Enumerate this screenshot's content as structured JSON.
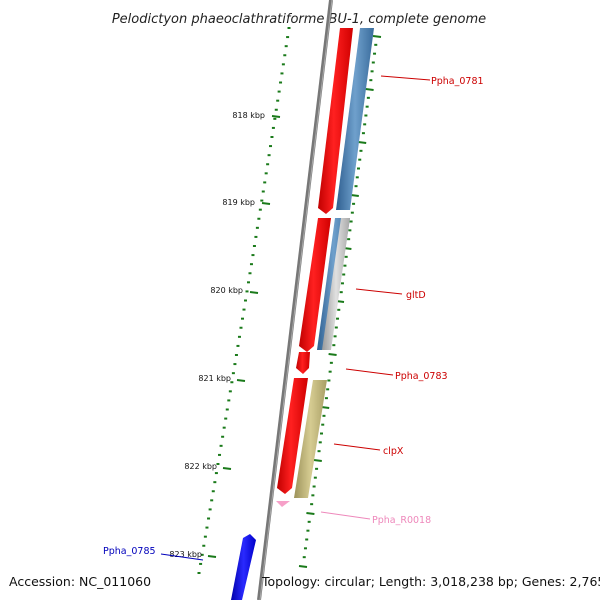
{
  "title": "Pelodictyon phaeoclathratiforme BU-1, complete genome",
  "footer": {
    "accession": "Accession: NC_011060",
    "topology": "Topology: circular; Length: 3,018,238 bp; Genes: 2,765"
  },
  "ticks": [
    {
      "label": "818 kbp"
    },
    {
      "label": "819 kbp"
    },
    {
      "label": "820 kbp"
    },
    {
      "label": "821 kbp"
    },
    {
      "label": "822 kbp"
    },
    {
      "label": "823 kbp"
    }
  ],
  "genes": [
    {
      "name": "Ppha_0781",
      "color": "#cc0000"
    },
    {
      "name": "gltD",
      "color": "#cc0000"
    },
    {
      "name": "Ppha_0783",
      "color": "#cc0000"
    },
    {
      "name": "clpX",
      "color": "#cc0000"
    },
    {
      "name": "Ppha_R0018",
      "color": "#ee88bb"
    },
    {
      "name": "Ppha_0785",
      "color": "#0000bb"
    }
  ],
  "colors": {
    "tick": "#1a7a1a",
    "backbone": "#808080",
    "red_track": "#ff0000",
    "blue_track": "#4a7fb0",
    "grey_track": "#b0b0b0",
    "olive_track": "#b8ae6e",
    "pink_feature": "#f6a0c8",
    "blue_feature": "#0000ee"
  }
}
